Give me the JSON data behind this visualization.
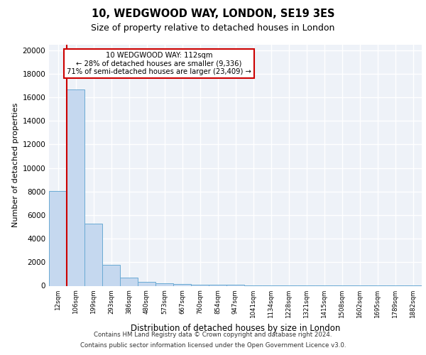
{
  "title1": "10, WEDGWOOD WAY, LONDON, SE19 3ES",
  "title2": "Size of property relative to detached houses in London",
  "xlabel": "Distribution of detached houses by size in London",
  "ylabel": "Number of detached properties",
  "bar_labels": [
    "12sqm",
    "106sqm",
    "199sqm",
    "293sqm",
    "386sqm",
    "480sqm",
    "573sqm",
    "667sqm",
    "760sqm",
    "854sqm",
    "947sqm",
    "1041sqm",
    "1134sqm",
    "1228sqm",
    "1321sqm",
    "1415sqm",
    "1508sqm",
    "1602sqm",
    "1695sqm",
    "1789sqm",
    "1882sqm"
  ],
  "bar_heights": [
    8050,
    16700,
    5300,
    1800,
    700,
    310,
    220,
    150,
    110,
    80,
    70,
    60,
    55,
    50,
    45,
    40,
    35,
    30,
    25,
    20,
    20
  ],
  "bar_color": "#c5d8ef",
  "bar_edge_color": "#6aaad4",
  "property_line_x": 1.0,
  "annotation_line1": "10 WEDGWOOD WAY: 112sqm",
  "annotation_line2": "← 28% of detached houses are smaller (9,336)",
  "annotation_line3": "71% of semi-detached houses are larger (23,409) →",
  "annotation_box_color": "#ffffff",
  "annotation_box_edge": "#cc0000",
  "red_line_color": "#cc0000",
  "background_color": "#eef2f8",
  "grid_color": "#ffffff",
  "ylim": [
    0,
    20500
  ],
  "yticks": [
    0,
    2000,
    4000,
    6000,
    8000,
    10000,
    12000,
    14000,
    16000,
    18000,
    20000
  ],
  "footnote1": "Contains HM Land Registry data © Crown copyright and database right 2024.",
  "footnote2": "Contains public sector information licensed under the Open Government Licence v3.0."
}
